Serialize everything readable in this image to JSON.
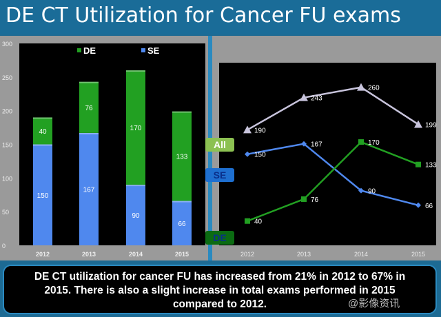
{
  "title": "DE CT Utilization for Cancer FU exams",
  "chart_data": [
    {
      "type": "bar",
      "stacked": true,
      "categories": [
        "2012",
        "2013",
        "2014",
        "2015"
      ],
      "series": [
        {
          "name": "SE",
          "color": "#4f88ee",
          "values": [
            150,
            167,
            90,
            66
          ]
        },
        {
          "name": "DE",
          "color": "#22a022",
          "values": [
            40,
            76,
            170,
            133
          ]
        }
      ],
      "yticks": [
        "0",
        "50",
        "100",
        "150",
        "200",
        "250",
        "300"
      ],
      "ylim": [
        0,
        300
      ],
      "legend": "top"
    },
    {
      "type": "line",
      "categories": [
        "2012",
        "2013",
        "2014",
        "2015"
      ],
      "series": [
        {
          "name": "All",
          "color": "#c8c4dc",
          "marker": "triangle",
          "values": [
            190,
            243,
            260,
            199
          ]
        },
        {
          "name": "SE",
          "color": "#4f88ee",
          "marker": "diamond",
          "values": [
            150,
            167,
            90,
            66
          ]
        },
        {
          "name": "DE",
          "color": "#22a022",
          "marker": "square",
          "values": [
            40,
            76,
            170,
            133
          ]
        }
      ],
      "ylim": [
        0,
        300
      ]
    }
  ],
  "series_tags": {
    "all": "All",
    "se": "SE",
    "de": "DE"
  },
  "note": {
    "line1": "DE CT utilization for cancer FU has increased from 21% in 2012 to 67% in",
    "line2": "2015. There is also a  slight increase in total exams performed in 2015",
    "line3": "compared to 2012."
  },
  "watermark": "@影像资讯"
}
